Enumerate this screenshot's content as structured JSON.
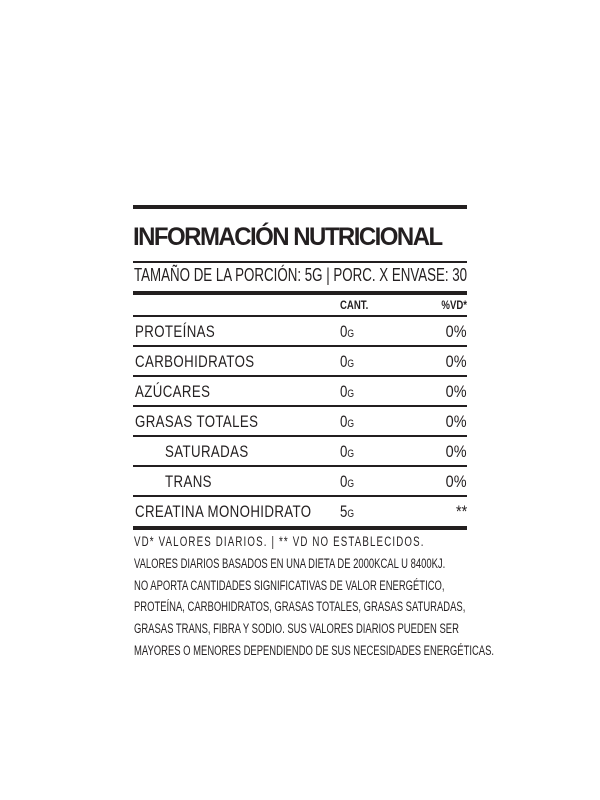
{
  "title": "INFORMACIÓN NUTRICIONAL",
  "serving": "TAMAÑO DE LA PORCIÓN: 5G | PORC. X ENVASE: 30",
  "columns": {
    "amount": "CANT.",
    "dv": "%VD*"
  },
  "rows": [
    {
      "name": "PROTEÍNAS",
      "amount": "0",
      "unit": "G",
      "dv": "0%",
      "indent": false
    },
    {
      "name": "CARBOHIDRATOS",
      "amount": "0",
      "unit": "G",
      "dv": "0%",
      "indent": false
    },
    {
      "name": "AZÚCARES",
      "amount": "0",
      "unit": "G",
      "dv": "0%",
      "indent": false
    },
    {
      "name": "GRASAS TOTALES",
      "amount": "0",
      "unit": "G",
      "dv": "0%",
      "indent": false
    },
    {
      "name": "SATURADAS",
      "amount": "0",
      "unit": "G",
      "dv": "0%",
      "indent": true
    },
    {
      "name": "TRANS",
      "amount": "0",
      "unit": "G",
      "dv": "0%",
      "indent": true
    },
    {
      "name": "CREATINA MONOHIDRATO",
      "amount": "5",
      "unit": "G",
      "dv": "**",
      "indent": false
    }
  ],
  "footnotes": [
    "VD* VALORES DIARIOS.  |  ** VD NO ESTABLECIDOS.",
    "VALORES DIARIOS BASADOS EN UNA DIETA DE 2000KCAL U 8400KJ.",
    "NO APORTA CANTIDADES SIGNIFICATIVAS DE VALOR ENERGÉTICO,",
    "PROTEÍNA, CARBOHIDRATOS, GRASAS TOTALES, GRASAS SATURADAS,",
    "GRASAS TRANS, FIBRA Y SODIO. SUS VALORES DIARIOS PUEDEN SER",
    "MAYORES O MENORES DEPENDIENDO DE SUS NECESIDADES ENERGÉTICAS."
  ]
}
